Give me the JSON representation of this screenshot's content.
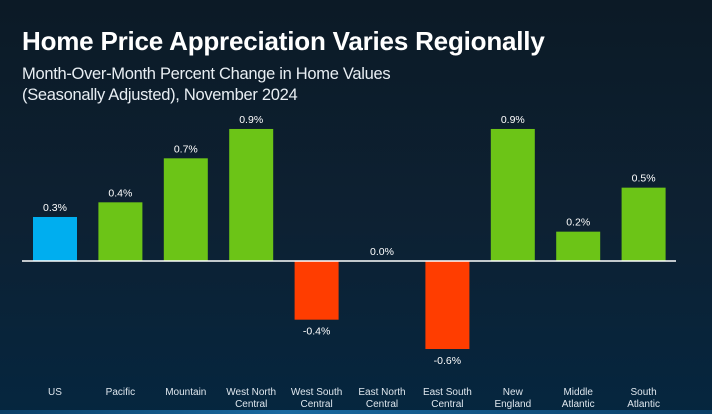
{
  "header": {
    "title": "Home Price Appreciation Varies Regionally",
    "subtitle_line1": "Month-Over-Month Percent Change in Home Values",
    "subtitle_line2": "(Seasonally Adjusted), November 2024"
  },
  "colors": {
    "us": "#00aeef",
    "positive": "#6cc417",
    "negative": "#ff3d00",
    "axis": "#ffffff"
  },
  "chart_data": {
    "type": "bar",
    "title": "Home Price Appreciation Varies Regionally",
    "subtitle": "Month-Over-Month Percent Change in Home Values (Seasonally Adjusted), November 2024",
    "xlabel": "",
    "ylabel": "",
    "unit": "%",
    "ylim": [
      -0.7,
      1.0
    ],
    "grid": false,
    "categories": [
      [
        "US"
      ],
      [
        "Pacific"
      ],
      [
        "Mountain"
      ],
      [
        "West North",
        "Central"
      ],
      [
        "West South",
        "Central"
      ],
      [
        "East North",
        "Central"
      ],
      [
        "East South",
        "Central"
      ],
      [
        "New",
        "England"
      ],
      [
        "Middle",
        "Atlantic"
      ],
      [
        "South",
        "Atlantic"
      ]
    ],
    "values": [
      0.3,
      0.4,
      0.7,
      0.9,
      -0.4,
      0.0,
      -0.6,
      0.9,
      0.2,
      0.5
    ],
    "labels": [
      "0.3%",
      "0.4%",
      "0.7%",
      "0.9%",
      "-0.4%",
      "0.0%",
      "-0.6%",
      "0.9%",
      "0.2%",
      "0.5%"
    ]
  }
}
